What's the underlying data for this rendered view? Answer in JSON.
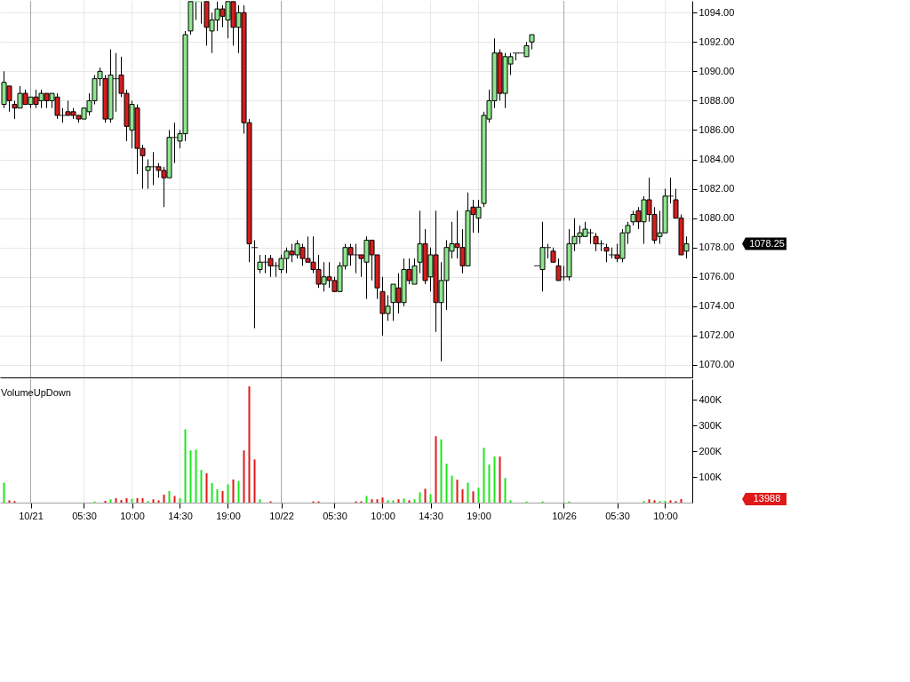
{
  "chart_data": [
    {
      "type": "candlestick",
      "categories": [
        null,
        null,
        null,
        null,
        null,
        "10/21",
        null,
        null,
        null,
        null,
        null,
        null,
        null,
        null,
        null,
        "05:30",
        null,
        null,
        null,
        null,
        null,
        null,
        null,
        null,
        "10:00",
        null,
        null,
        null,
        null,
        null,
        null,
        null,
        null,
        "14:30",
        null,
        null,
        null,
        null,
        null,
        null,
        null,
        null,
        "19:00",
        null,
        null,
        null,
        null,
        null,
        null,
        null,
        null,
        null,
        "10/22",
        null,
        null,
        null,
        null,
        null,
        null,
        null,
        null,
        null,
        "05:30",
        null,
        null,
        null,
        null,
        null,
        null,
        null,
        null,
        "10:00",
        null,
        null,
        null,
        null,
        null,
        null,
        null,
        null,
        "14:30",
        null,
        null,
        null,
        null,
        null,
        null,
        null,
        null,
        "19:00",
        null,
        null,
        null,
        null,
        null,
        null,
        null,
        null,
        null,
        null,
        null,
        null,
        null,
        null,
        null,
        "10/26",
        null,
        null,
        null,
        null,
        null,
        null,
        null,
        null,
        null,
        "05:30",
        null,
        null,
        null,
        null,
        null,
        null,
        null,
        null,
        "10:00",
        null,
        null,
        null,
        null
      ],
      "ohlc": [
        [
          1087.75,
          1090.0,
          1087.5,
          1089.25
        ],
        [
          1089.0,
          1089.0,
          1087.25,
          1088.0
        ],
        [
          1087.75,
          1088.0,
          1086.75,
          1087.5
        ],
        [
          1087.5,
          1089.0,
          1087.5,
          1088.5
        ],
        [
          1088.5,
          1088.75,
          1087.75,
          1087.75
        ],
        [
          1087.75,
          1088.25,
          1087.5,
          1088.25
        ],
        [
          1088.25,
          1088.75,
          1087.5,
          1087.75
        ],
        [
          1088.0,
          1088.75,
          1087.5,
          1088.5
        ],
        [
          1088.5,
          1088.5,
          1087.5,
          1088.0
        ],
        [
          1088.0,
          1088.5,
          1087.5,
          1088.5
        ],
        [
          1088.25,
          1088.5,
          1086.75,
          1087.0
        ],
        [
          1087.0,
          1087.5,
          1086.5,
          1087.0
        ],
        [
          1087.25,
          1088.0,
          1087.0,
          1087.0
        ],
        [
          1087.25,
          1087.5,
          1086.75,
          1087.0
        ],
        [
          1087.0,
          1087.0,
          1086.5,
          1086.75
        ],
        [
          1086.75,
          1087.5,
          1086.75,
          1087.5
        ],
        [
          1087.25,
          1088.5,
          1087.0,
          1088.0
        ],
        [
          1088.0,
          1089.75,
          1087.75,
          1089.5
        ],
        [
          1089.5,
          1090.25,
          1089.0,
          1090.0
        ],
        [
          1089.5,
          1089.75,
          1086.5,
          1086.75
        ],
        [
          1086.75,
          1091.5,
          1086.5,
          1089.75
        ],
        [
          1089.5,
          1091.25,
          1087.25,
          1089.5
        ],
        [
          1089.75,
          1091.0,
          1088.25,
          1088.5
        ],
        [
          1088.5,
          1088.75,
          1085.25,
          1086.25
        ],
        [
          1086.0,
          1088.0,
          1084.75,
          1087.75
        ],
        [
          1087.5,
          1087.75,
          1083.0,
          1084.75
        ],
        [
          1084.75,
          1085.0,
          1082.0,
          1084.25
        ],
        [
          1083.25,
          1084.0,
          1082.0,
          1083.5
        ],
        [
          1083.5,
          1084.5,
          1082.25,
          1083.5
        ],
        [
          1083.5,
          1083.75,
          1082.75,
          1083.25
        ],
        [
          1083.25,
          1083.5,
          1080.75,
          1082.75
        ],
        [
          1082.75,
          1086.0,
          1082.75,
          1085.5
        ],
        [
          1085.5,
          1086.5,
          1083.75,
          1085.5
        ],
        [
          1085.25,
          1086.0,
          1084.75,
          1085.75
        ],
        [
          1085.75,
          1092.75,
          1085.25,
          1092.5
        ],
        [
          1092.75,
          1094.75,
          1092.5,
          1094.75
        ],
        [
          1094.75,
          1094.75,
          1093.5,
          1094.75
        ],
        [
          1094.75,
          1094.75,
          1093.25,
          1094.75
        ],
        [
          1094.75,
          1094.75,
          1091.75,
          1093.0
        ],
        [
          1092.75,
          1094.0,
          1091.25,
          1093.5
        ],
        [
          1093.5,
          1094.75,
          1092.75,
          1094.25
        ],
        [
          1094.25,
          1094.5,
          1093.0,
          1093.75
        ],
        [
          1093.5,
          1094.75,
          1092.25,
          1094.75
        ],
        [
          1094.75,
          1094.75,
          1091.75,
          1093.0
        ],
        [
          1093.0,
          1094.5,
          1091.25,
          1094.0
        ],
        [
          1094.0,
          1094.5,
          1085.75,
          1086.5
        ],
        [
          1086.5,
          1086.75,
          1077.0,
          1078.25
        ],
        [
          1078.0,
          1078.5,
          1072.5,
          1078.0
        ],
        [
          1076.5,
          1077.5,
          1076.25,
          1077.0
        ],
        [
          1077.0,
          1077.5,
          1076.25,
          1077.0
        ],
        [
          1077.25,
          1077.5,
          1076.0,
          1076.75
        ],
        [
          1076.75,
          1077.0,
          1076.0,
          1076.75
        ],
        [
          1076.5,
          1077.5,
          1076.25,
          1077.25
        ],
        [
          1077.25,
          1078.0,
          1076.25,
          1077.75
        ],
        [
          1077.75,
          1078.25,
          1077.0,
          1077.5
        ],
        [
          1077.5,
          1078.5,
          1077.25,
          1078.25
        ],
        [
          1078.0,
          1078.25,
          1076.75,
          1077.25
        ],
        [
          1077.25,
          1078.75,
          1077.0,
          1077.0
        ],
        [
          1077.0,
          1078.75,
          1076.25,
          1076.5
        ],
        [
          1076.5,
          1077.5,
          1075.25,
          1075.5
        ],
        [
          1075.5,
          1077.0,
          1075.0,
          1076.0
        ],
        [
          1076.0,
          1077.0,
          1075.25,
          1075.75
        ],
        [
          1075.75,
          1076.0,
          1075.0,
          1075.0
        ],
        [
          1075.0,
          1077.0,
          1075.0,
          1076.75
        ],
        [
          1076.75,
          1078.25,
          1076.5,
          1078.0
        ],
        [
          1078.0,
          1078.25,
          1076.75,
          1077.5
        ],
        [
          1077.5,
          1078.25,
          1076.25,
          1077.5
        ],
        [
          1077.5,
          1077.5,
          1076.0,
          1077.25
        ],
        [
          1077.0,
          1078.75,
          1074.5,
          1078.5
        ],
        [
          1078.5,
          1078.5,
          1075.75,
          1077.5
        ],
        [
          1077.5,
          1077.5,
          1074.5,
          1075.25
        ],
        [
          1075.0,
          1076.0,
          1072.0,
          1073.5
        ],
        [
          1073.5,
          1074.75,
          1073.0,
          1074.0
        ],
        [
          1074.25,
          1075.5,
          1073.0,
          1075.5
        ],
        [
          1075.25,
          1076.25,
          1073.5,
          1074.25
        ],
        [
          1074.25,
          1077.25,
          1074.0,
          1076.5
        ],
        [
          1076.5,
          1077.25,
          1075.5,
          1075.75
        ],
        [
          1075.5,
          1077.25,
          1075.5,
          1076.75
        ],
        [
          1077.0,
          1080.5,
          1076.25,
          1078.25
        ],
        [
          1078.25,
          1079.25,
          1075.5,
          1075.75
        ],
        [
          1076.0,
          1078.0,
          1075.0,
          1077.5
        ],
        [
          1077.5,
          1080.5,
          1072.25,
          1074.25
        ],
        [
          1074.25,
          1077.0,
          1070.25,
          1075.75
        ],
        [
          1075.75,
          1078.5,
          1073.75,
          1078.0
        ],
        [
          1077.75,
          1079.75,
          1077.25,
          1078.25
        ],
        [
          1078.25,
          1080.5,
          1077.25,
          1078.0
        ],
        [
          1078.0,
          1079.25,
          1076.25,
          1076.75
        ],
        [
          1076.75,
          1081.75,
          1076.75,
          1080.5
        ],
        [
          1080.75,
          1081.25,
          1079.0,
          1080.25
        ],
        [
          1080.0,
          1081.25,
          1079.0,
          1080.75
        ],
        [
          1081.0,
          1087.25,
          1080.75,
          1087.0
        ],
        [
          1086.75,
          1088.75,
          1086.5,
          1088.0
        ],
        [
          1088.0,
          1092.25,
          1087.5,
          1091.25
        ],
        [
          1091.25,
          1091.5,
          1088.0,
          1088.5
        ],
        [
          1088.5,
          1091.25,
          1087.5,
          1091.0
        ],
        [
          1090.5,
          1091.25,
          1089.75,
          1091.0
        ],
        [
          1091.25,
          1091.25,
          1090.75,
          1091.25
        ],
        [
          1091.25,
          1091.25,
          1091.25,
          1091.25
        ],
        [
          1091.0,
          1092.0,
          1091.0,
          1091.75
        ],
        [
          1092.0,
          1092.5,
          1091.5,
          1092.5
        ],
        [
          1076.75,
          1076.75,
          1076.75,
          1076.75
        ],
        [
          1076.5,
          1079.75,
          1075.0,
          1078.0
        ],
        [
          1078.0,
          1078.25,
          1077.25,
          1078.0
        ],
        [
          1077.75,
          1078.0,
          1077.0,
          1077.0
        ],
        [
          1076.75,
          1077.25,
          1075.75,
          1075.75
        ],
        [
          1076.0,
          1076.75,
          1075.75,
          1076.0
        ],
        [
          1076.0,
          1079.25,
          1075.75,
          1078.25
        ],
        [
          1078.25,
          1080.0,
          1077.75,
          1078.75
        ],
        [
          1078.75,
          1079.5,
          1078.25,
          1079.0
        ],
        [
          1078.75,
          1079.75,
          1078.75,
          1079.25
        ],
        [
          1079.0,
          1079.25,
          1078.25,
          1079.0
        ],
        [
          1078.75,
          1079.0,
          1077.75,
          1078.25
        ],
        [
          1078.25,
          1078.5,
          1077.75,
          1078.25
        ],
        [
          1078.0,
          1078.25,
          1077.0,
          1077.75
        ],
        [
          1077.5,
          1078.0,
          1077.25,
          1077.5
        ],
        [
          1077.5,
          1078.25,
          1077.0,
          1077.25
        ],
        [
          1077.25,
          1079.25,
          1077.0,
          1079.0
        ],
        [
          1079.0,
          1079.75,
          1078.25,
          1079.5
        ],
        [
          1079.75,
          1080.5,
          1079.5,
          1080.25
        ],
        [
          1080.5,
          1080.75,
          1079.25,
          1079.75
        ],
        [
          1079.75,
          1081.5,
          1078.25,
          1081.25
        ],
        [
          1081.25,
          1082.75,
          1079.75,
          1080.25
        ],
        [
          1080.25,
          1080.75,
          1078.25,
          1078.5
        ],
        [
          1078.75,
          1080.5,
          1078.25,
          1079.0
        ],
        [
          1079.0,
          1082.0,
          1079.0,
          1081.5
        ],
        [
          1081.5,
          1082.75,
          1081.0,
          1081.5
        ],
        [
          1081.25,
          1082.0,
          1080.0,
          1080.0
        ],
        [
          1080.0,
          1080.25,
          1077.5,
          1077.5
        ],
        [
          1077.75,
          1078.75,
          1077.25,
          1078.25
        ]
      ],
      "colors": [
        "#8ee68e",
        "#d41d1d",
        "#d41d1d",
        "#8ee68e",
        "#d41d1d",
        "#8ee68e",
        "#d41d1d",
        "#8ee68e",
        "#d41d1d",
        "#8ee68e",
        "#d41d1d",
        "#000000",
        "#d41d1d",
        "#d41d1d",
        "#d41d1d",
        "#8ee68e",
        "#8ee68e",
        "#8ee68e",
        "#8ee68e",
        "#d41d1d",
        "#8ee68e",
        "#000000",
        "#d41d1d",
        "#d41d1d",
        "#8ee68e",
        "#d41d1d",
        "#d41d1d",
        "#8ee68e",
        "#000000",
        "#d41d1d",
        "#d41d1d",
        "#8ee68e",
        "#000000",
        "#8ee68e",
        "#8ee68e",
        "#8ee68e",
        "#8ee68e",
        "#8ee68e",
        "#d41d1d",
        "#8ee68e",
        "#8ee68e",
        "#d41d1d",
        "#8ee68e",
        "#d41d1d",
        "#8ee68e",
        "#d41d1d",
        "#d41d1d",
        "#000000",
        "#8ee68e",
        "#000000",
        "#d41d1d",
        "#000000",
        "#8ee68e",
        "#8ee68e",
        "#d41d1d",
        "#8ee68e",
        "#d41d1d",
        "#d41d1d",
        "#d41d1d",
        "#d41d1d",
        "#8ee68e",
        "#d41d1d",
        "#d41d1d",
        "#8ee68e",
        "#8ee68e",
        "#d41d1d",
        "#000000",
        "#d41d1d",
        "#8ee68e",
        "#d41d1d",
        "#d41d1d",
        "#d41d1d",
        "#8ee68e",
        "#8ee68e",
        "#d41d1d",
        "#8ee68e",
        "#d41d1d",
        "#8ee68e",
        "#8ee68e",
        "#d41d1d",
        "#8ee68e",
        "#d41d1d",
        "#8ee68e",
        "#8ee68e",
        "#8ee68e",
        "#d41d1d",
        "#d41d1d",
        "#8ee68e",
        "#d41d1d",
        "#8ee68e",
        "#8ee68e",
        "#8ee68e",
        "#8ee68e",
        "#d41d1d",
        "#8ee68e",
        "#8ee68e",
        "#000000",
        "#000000",
        "#8ee68e",
        "#8ee68e",
        "#000000",
        "#8ee68e",
        "#000000",
        "#d41d1d",
        "#d41d1d",
        "#000000",
        "#8ee68e",
        "#8ee68e",
        "#8ee68e",
        "#8ee68e",
        "#000000",
        "#d41d1d",
        "#000000",
        "#d41d1d",
        "#000000",
        "#d41d1d",
        "#8ee68e",
        "#8ee68e",
        "#8ee68e",
        "#d41d1d",
        "#8ee68e",
        "#d41d1d",
        "#d41d1d",
        "#8ee68e",
        "#8ee68e",
        "#000000",
        "#d41d1d",
        "#d41d1d",
        "#8ee68e"
      ],
      "ylim": [
        1069.15,
        1094.8
      ],
      "yticks": [
        {
          "value": 1070,
          "label": "1070.00"
        },
        {
          "value": 1072,
          "label": "1072.00"
        },
        {
          "value": 1074,
          "label": "1074.00"
        },
        {
          "value": 1076,
          "label": "1076.00"
        },
        {
          "value": 1078,
          "label": "1078.00"
        },
        {
          "value": 1080,
          "label": "1080.00"
        },
        {
          "value": 1082,
          "label": "1082.00"
        },
        {
          "value": 1084,
          "label": "1084.00"
        },
        {
          "value": 1086,
          "label": "1086.00"
        },
        {
          "value": 1088,
          "label": "1088.00"
        },
        {
          "value": 1090,
          "label": "1090.00"
        },
        {
          "value": 1092,
          "label": "1092.00"
        },
        {
          "value": 1094,
          "label": "1094.00"
        }
      ],
      "grid": true,
      "tick_labels": "y",
      "ref_lines": [
        {
          "axis": "x",
          "value": "10/21",
          "color": "#a8a8a8"
        },
        {
          "axis": "x",
          "value": "10/22",
          "color": "#a8a8a8"
        },
        {
          "axis": "x",
          "value": "10/26",
          "color": "#a8a8a8"
        }
      ],
      "annotations": [
        "1078.25"
      ]
    },
    {
      "type": "bar",
      "title": "VolumeUpDown",
      "categories": [
        null,
        null,
        null,
        null,
        null,
        "10/21",
        null,
        null,
        null,
        null,
        null,
        null,
        null,
        null,
        null,
        "05:30",
        null,
        null,
        null,
        null,
        null,
        null,
        null,
        null,
        "10:00",
        null,
        null,
        null,
        null,
        null,
        null,
        null,
        null,
        "14:30",
        null,
        null,
        null,
        null,
        null,
        null,
        null,
        null,
        "19:00",
        null,
        null,
        null,
        null,
        null,
        null,
        null,
        null,
        null,
        "10/22",
        null,
        null,
        null,
        null,
        null,
        null,
        null,
        null,
        null,
        "05:30",
        null,
        null,
        null,
        null,
        null,
        null,
        null,
        null,
        "10:00",
        null,
        null,
        null,
        null,
        null,
        null,
        null,
        null,
        "14:30",
        null,
        null,
        null,
        null,
        null,
        null,
        null,
        null,
        "19:00",
        null,
        null,
        null,
        null,
        null,
        null,
        null,
        null,
        null,
        null,
        null,
        null,
        null,
        null,
        null,
        "10/26",
        null,
        null,
        null,
        null,
        null,
        null,
        null,
        null,
        null,
        "05:30",
        null,
        null,
        null,
        null,
        null,
        null,
        null,
        null,
        "10:00",
        null,
        null,
        null,
        null
      ],
      "values": [
        78000,
        9000,
        6000,
        null,
        null,
        null,
        null,
        null,
        null,
        null,
        null,
        null,
        null,
        null,
        null,
        null,
        null,
        4000,
        null,
        7000,
        13000,
        17000,
        10000,
        17000,
        15000,
        17000,
        17000,
        6000,
        13000,
        9000,
        31000,
        45000,
        26000,
        17000,
        285000,
        203000,
        206000,
        127000,
        114000,
        76000,
        52000,
        45000,
        71000,
        90000,
        84000,
        203000,
        452000,
        168000,
        13000,
        null,
        5000,
        null,
        null,
        null,
        null,
        null,
        null,
        null,
        5000,
        5000,
        null,
        null,
        null,
        null,
        null,
        null,
        5000,
        5000,
        26000,
        13000,
        13000,
        20000,
        9000,
        9000,
        13000,
        16000,
        9000,
        13000,
        40000,
        54000,
        33000,
        258000,
        246000,
        151000,
        105000,
        89000,
        52000,
        78000,
        44000,
        58000,
        213000,
        148000,
        179000,
        179000,
        96000,
        9000,
        null,
        null,
        4000,
        null,
        null,
        5000,
        null,
        null,
        null,
        null,
        5000,
        null,
        null,
        null,
        null,
        null,
        null,
        null,
        null,
        null,
        null,
        null,
        null,
        null,
        6000,
        13000,
        9000,
        6000,
        7000,
        9000,
        6000,
        14000,
        null
      ],
      "colors": [
        "#1ee61e",
        "#e01818",
        "#e01818",
        null,
        null,
        null,
        null,
        null,
        null,
        null,
        null,
        null,
        null,
        null,
        null,
        null,
        null,
        "#1ee61e",
        null,
        "#e01818",
        "#1ee61e",
        "#e01818",
        "#e01818",
        "#e01818",
        "#1ee61e",
        "#e01818",
        "#e01818",
        "#1ee61e",
        "#e01818",
        "#e01818",
        "#e01818",
        "#1ee61e",
        "#e01818",
        "#1ee61e",
        "#1ee61e",
        "#1ee61e",
        "#1ee61e",
        "#1ee61e",
        "#e01818",
        "#1ee61e",
        "#1ee61e",
        "#e01818",
        "#1ee61e",
        "#e01818",
        "#1ee61e",
        "#e01818",
        "#e01818",
        "#e01818",
        "#1ee61e",
        null,
        "#e01818",
        null,
        null,
        null,
        null,
        null,
        null,
        null,
        "#e01818",
        "#e01818",
        null,
        null,
        null,
        null,
        null,
        null,
        "#e01818",
        "#e01818",
        "#1ee61e",
        "#e01818",
        "#e01818",
        "#e01818",
        "#1ee61e",
        "#1ee61e",
        "#e01818",
        "#1ee61e",
        "#e01818",
        "#1ee61e",
        "#1ee61e",
        "#e01818",
        "#1ee61e",
        "#e01818",
        "#1ee61e",
        "#1ee61e",
        "#1ee61e",
        "#e01818",
        "#e01818",
        "#1ee61e",
        "#e01818",
        "#1ee61e",
        "#1ee61e",
        "#1ee61e",
        "#1ee61e",
        "#e01818",
        "#1ee61e",
        "#1ee61e",
        null,
        null,
        "#1ee61e",
        null,
        null,
        "#1ee61e",
        null,
        null,
        null,
        null,
        "#1ee61e",
        null,
        null,
        null,
        null,
        null,
        null,
        null,
        null,
        null,
        null,
        null,
        null,
        null,
        "#1ee61e",
        "#e01818",
        "#e01818",
        "#1ee61e",
        "#1ee61e",
        "#e01818",
        "#e01818",
        "#e01818",
        null
      ],
      "ylim": [
        0,
        480000
      ],
      "yticks": [
        {
          "value": 100000,
          "label": "100K"
        },
        {
          "value": 200000,
          "label": "200K"
        },
        {
          "value": 300000,
          "label": "300K"
        },
        {
          "value": 400000,
          "label": "400K"
        }
      ],
      "grid": "x",
      "ref_lines": [
        {
          "axis": "x",
          "value": "10/21",
          "color": "#a8a8a8"
        },
        {
          "axis": "x",
          "value": "10/22",
          "color": "#a8a8a8"
        },
        {
          "axis": "x",
          "value": "10/26",
          "color": "#a8a8a8"
        }
      ],
      "annotations": [
        "13988"
      ]
    }
  ]
}
